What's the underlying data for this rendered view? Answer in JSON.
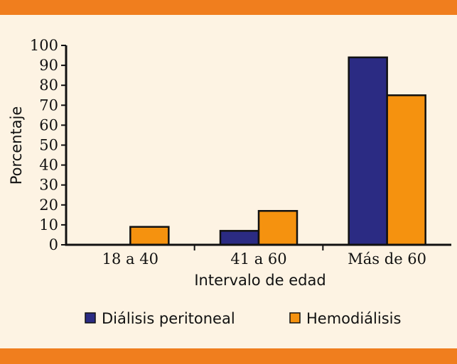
{
  "chart_data": {
    "type": "bar",
    "categories": [
      "18 a 40",
      "41 a 60",
      "Más de 60"
    ],
    "series": [
      {
        "name": "Diálisis peritoneal",
        "values": [
          0,
          7,
          94
        ],
        "color": "#2b2b83"
      },
      {
        "name": "Hemodiálisis",
        "values": [
          9,
          17,
          75
        ],
        "color": "#f5920f"
      }
    ],
    "xlabel": "Intervalo de edad",
    "ylabel": "Porcentaje",
    "ylim": [
      0,
      100
    ],
    "yticks": [
      0,
      10,
      20,
      30,
      40,
      50,
      60,
      70,
      80,
      90,
      100
    ],
    "grid": false,
    "legend": "bottom"
  }
}
